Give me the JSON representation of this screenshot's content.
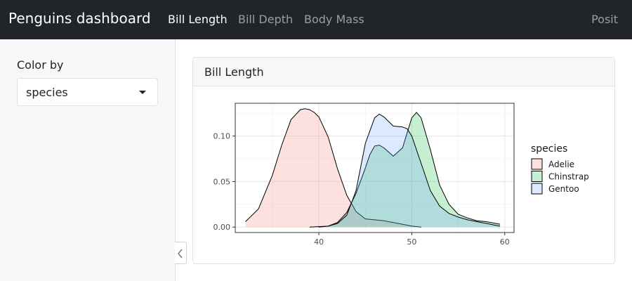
{
  "navbar": {
    "title": "Penguins dashboard",
    "tabs": [
      {
        "label": "Bill Length",
        "active": true
      },
      {
        "label": "Bill Depth",
        "active": false
      },
      {
        "label": "Body Mass",
        "active": false
      }
    ],
    "right_link": "Posit"
  },
  "sidebar": {
    "control_label": "Color by",
    "select_value": "species"
  },
  "card": {
    "title": "Bill Length"
  },
  "colors": {
    "navbar_bg": "#212529",
    "Adelie": "#F8766D",
    "Chinstrap": "#00BA38",
    "Gentoo": "#619CFF"
  },
  "chart_data": {
    "type": "area",
    "title": "",
    "xlabel": "",
    "ylabel": "",
    "xlim": [
      31,
      61
    ],
    "ylim": [
      -0.006,
      0.136
    ],
    "x_ticks": [
      40,
      50,
      60
    ],
    "y_ticks": [
      0.0,
      0.05,
      0.1
    ],
    "y_tick_labels": [
      "0.00",
      "0.05",
      "0.10"
    ],
    "grid": true,
    "legend_title": "species",
    "legend_position": "right",
    "series": [
      {
        "name": "Adelie",
        "color": "#F8766D",
        "x": [
          32.1,
          33.5,
          35.0,
          36.0,
          37.0,
          38.0,
          38.5,
          39.0,
          39.5,
          40.0,
          41.0,
          42.0,
          43.0,
          44.0,
          45.0,
          46.0,
          47.0,
          48.0,
          49.0,
          50.0,
          51.0
        ],
        "y": [
          0.006,
          0.02,
          0.057,
          0.09,
          0.118,
          0.129,
          0.13,
          0.129,
          0.126,
          0.121,
          0.099,
          0.064,
          0.035,
          0.017,
          0.009,
          0.008,
          0.007,
          0.005,
          0.003,
          0.001,
          0.0
        ]
      },
      {
        "name": "Chinstrap",
        "color": "#00BA38",
        "x": [
          39.0,
          41.0,
          42.0,
          43.0,
          44.0,
          45.0,
          45.5,
          46.0,
          46.5,
          47.0,
          48.0,
          49.0,
          50.0,
          50.5,
          51.0,
          52.0,
          53.0,
          54.0,
          55.0,
          56.0,
          57.0,
          58.0,
          59.0,
          59.5
        ],
        "y": [
          0.0,
          0.001,
          0.005,
          0.016,
          0.037,
          0.065,
          0.08,
          0.089,
          0.09,
          0.087,
          0.078,
          0.087,
          0.12,
          0.126,
          0.12,
          0.085,
          0.046,
          0.025,
          0.014,
          0.01,
          0.007,
          0.006,
          0.004,
          0.003
        ]
      },
      {
        "name": "Gentoo",
        "color": "#619CFF",
        "x": [
          40.0,
          41.0,
          42.0,
          43.0,
          44.0,
          45.0,
          46.0,
          46.5,
          47.0,
          48.0,
          49.0,
          49.5,
          50.0,
          51.0,
          52.0,
          53.0,
          54.0,
          55.0,
          56.0,
          57.0,
          58.0,
          59.0,
          59.5
        ],
        "y": [
          0.0,
          0.001,
          0.004,
          0.013,
          0.04,
          0.092,
          0.12,
          0.124,
          0.121,
          0.111,
          0.11,
          0.108,
          0.1,
          0.07,
          0.04,
          0.023,
          0.015,
          0.011,
          0.008,
          0.006,
          0.004,
          0.002,
          0.001
        ]
      }
    ]
  }
}
